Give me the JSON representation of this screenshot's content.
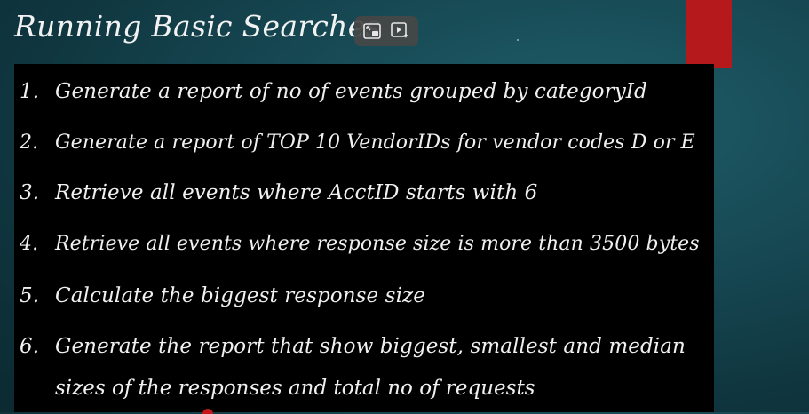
{
  "slide": {
    "title": "Running Basic Searches"
  },
  "video_controls": {
    "icons": [
      "picture-in-picture-icon",
      "video-assist-icon"
    ]
  },
  "items": [
    {
      "number": "1.",
      "text": "Generate a report of no of events grouped by categoryId"
    },
    {
      "number": "2.",
      "text": "Generate a report of TOP 10 VendorIDs for vendor codes D or E"
    },
    {
      "number": "3.",
      "text": "Retrieve all events where AcctID starts with 6"
    },
    {
      "number": "4.",
      "text": "Retrieve all events where response size is more than 3500 bytes"
    },
    {
      "number": "5.",
      "text": "Calculate the biggest response size"
    },
    {
      "number": "6.",
      "text": "Generate the report that show biggest, smallest and median",
      "continuation": "sizes of the responses and total no of requests"
    }
  ],
  "colors": {
    "background": "#174a55",
    "accent": "#b5191c",
    "box": "#000000",
    "text": "#f0f0f0"
  }
}
